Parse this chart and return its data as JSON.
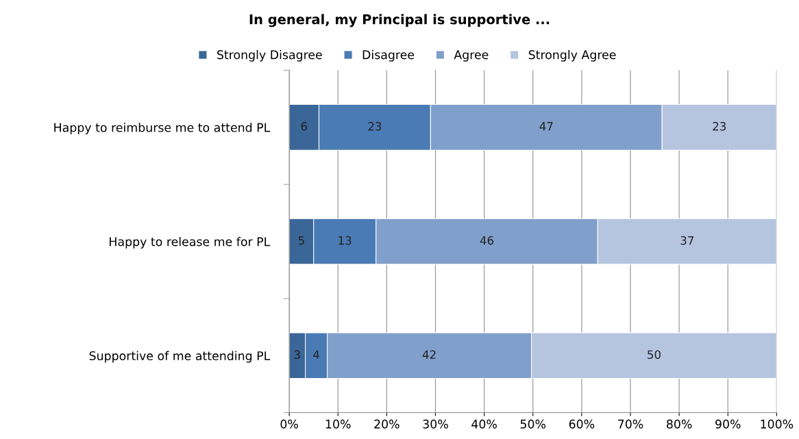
{
  "chart_data": {
    "type": "bar",
    "orientation": "horizontal",
    "stacked": true,
    "title": "In general, my Principal is supportive ...",
    "categories": [
      "Happy to reimburse me to attend PL",
      "Happy to release me for PL",
      "Supportive of me attending PL"
    ],
    "series": [
      {
        "name": "Strongly Disagree",
        "color": "#3b6698",
        "values": [
          6.1,
          5,
          3.3
        ],
        "value_labels": [
          "6",
          "5",
          "3"
        ]
      },
      {
        "name": "Disagree",
        "color": "#4a7bb5",
        "values": [
          22.9,
          12.8,
          4.5
        ],
        "value_labels": [
          "23",
          "13",
          "4"
        ]
      },
      {
        "name": "Agree",
        "color": "#809fca",
        "values": [
          47.5,
          45.5,
          41.9
        ],
        "value_labels": [
          "47",
          "46",
          "42"
        ]
      },
      {
        "name": "Strongly Agree",
        "color": "#b5c4df",
        "values": [
          23.5,
          36.7,
          50.3
        ],
        "value_labels": [
          "23",
          "37",
          "50"
        ]
      }
    ],
    "xlim": [
      0,
      100
    ],
    "xticks": [
      {
        "value": 0,
        "label": "0%"
      },
      {
        "value": 10,
        "label": "10%"
      },
      {
        "value": 20,
        "label": "20%"
      },
      {
        "value": 30,
        "label": "30%"
      },
      {
        "value": 40,
        "label": "40%"
      },
      {
        "value": 50,
        "label": "50%"
      },
      {
        "value": 60,
        "label": "60%"
      },
      {
        "value": 70,
        "label": "70%"
      },
      {
        "value": 80,
        "label": "80%"
      },
      {
        "value": 90,
        "label": "90%"
      },
      {
        "value": 100,
        "label": "100%"
      }
    ],
    "grid": "x",
    "legend": "top"
  }
}
